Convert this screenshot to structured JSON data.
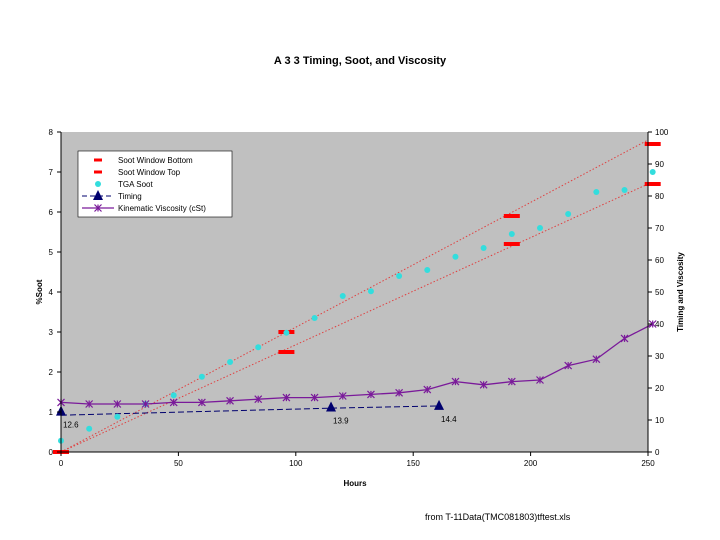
{
  "chart_data": {
    "type": "line",
    "title": "A 3 3 Timing, Soot, and Viscosity",
    "xlabel": "Hours",
    "ylabel_left": "%Soot",
    "ylabel_right": "Timing and Viscosity",
    "xlim": [
      0,
      250
    ],
    "ylim_left": [
      0,
      8
    ],
    "ylim_right": [
      0,
      100
    ],
    "x_ticks": [
      0,
      50,
      100,
      150,
      200,
      250
    ],
    "y_left_ticks": [
      0,
      1,
      2,
      3,
      4,
      5,
      6,
      7,
      8
    ],
    "y_right_ticks": [
      0,
      10,
      20,
      30,
      40,
      50,
      60,
      70,
      80,
      90,
      100
    ],
    "grid": false,
    "legend_position": "top-left",
    "background": "#c0c0c0",
    "series": [
      {
        "name": "Soot Window Bottom",
        "axis": "left",
        "style": "dash-marker",
        "color": "#ff0000",
        "x": [
          0,
          96,
          192,
          252
        ],
        "y": [
          0,
          2.5,
          5.2,
          6.7
        ]
      },
      {
        "name": "Soot Window Top",
        "axis": "left",
        "style": "dash-marker",
        "color": "#ff0000",
        "x": [
          0,
          96,
          192,
          252
        ],
        "y": [
          0,
          3.0,
          5.9,
          7.7
        ]
      },
      {
        "name": "TGA Soot",
        "axis": "left",
        "style": "dot",
        "color": "#33dddd",
        "x": [
          0,
          12,
          24,
          36,
          48,
          60,
          72,
          84,
          96,
          108,
          120,
          132,
          144,
          156,
          168,
          180,
          192,
          204,
          216,
          228,
          240,
          252
        ],
        "y": [
          0.28,
          0.58,
          0.88,
          1.2,
          1.42,
          1.88,
          2.25,
          2.62,
          2.98,
          3.35,
          3.9,
          4.02,
          4.4,
          4.55,
          4.88,
          5.1,
          5.45,
          5.6,
          5.95,
          6.5,
          6.55,
          7.0
        ]
      },
      {
        "name": "Timing",
        "axis": "right",
        "style": "dashed-triangle",
        "color": "#00006e",
        "x": [
          0,
          115,
          161
        ],
        "y": [
          12.6,
          13.9,
          14.4
        ]
      },
      {
        "name": "Kinematic Viscosity (cSt)",
        "axis": "right",
        "style": "line-star",
        "color": "#7a1a9a",
        "x": [
          0,
          12,
          24,
          36,
          48,
          60,
          72,
          84,
          96,
          108,
          120,
          132,
          144,
          156,
          168,
          180,
          192,
          204,
          216,
          228,
          240,
          252
        ],
        "y": [
          15.5,
          15,
          15,
          15,
          15.5,
          15.5,
          16,
          16.5,
          17,
          17,
          17.5,
          18,
          18.5,
          19.5,
          22,
          21,
          22,
          22.5,
          27,
          29,
          35.5,
          40
        ]
      }
    ],
    "trend_lines": [
      {
        "from": [
          0,
          0
        ],
        "to": [
          250,
          6.7
        ],
        "color": "#e04040"
      },
      {
        "from": [
          0,
          0
        ],
        "to": [
          250,
          7.8
        ],
        "color": "#e04040"
      },
      {
        "from": [
          0,
          11.5
        ],
        "to": [
          115,
          13.7
        ],
        "color": "#00006e"
      },
      {
        "from": [
          115,
          13.7
        ],
        "to": [
          161,
          14.4
        ],
        "color": "#00006e"
      }
    ],
    "annotations": [
      {
        "text": "12.6",
        "x": 0,
        "y": 12.6,
        "axis": "right"
      },
      {
        "text": "13.9",
        "x": 115,
        "y": 13.9,
        "axis": "right"
      },
      {
        "text": "14.4",
        "x": 161,
        "y": 14.4,
        "axis": "right"
      }
    ]
  },
  "footer": {
    "source": "from T-11Data(TMC081803)tftest.xls"
  }
}
